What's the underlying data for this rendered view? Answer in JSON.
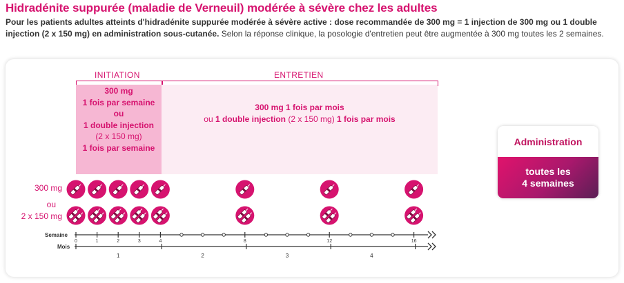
{
  "title": "Hidradénite suppurée (maladie de Verneuil) modérée à sévère chez les adultes",
  "intro": {
    "bold": "Pour les patients adultes atteints d'hidradénite suppurée modérée à sévère active : dose recommandée de 300 mg = 1 injection de 300 mg ou 1 double injection (2 x 150 mg) en administration sous-cutanée.",
    "normal": " Selon la réponse clinique, la posologie d'entretien peut être augmentée à 300 mg toutes les 2 semaines."
  },
  "phases": {
    "initiation_label": "INITIATION",
    "entretien_label": "ENTRETIEN"
  },
  "initiation": {
    "line1": "300 mg",
    "line2": "1 fois par semaine",
    "line3": "ou",
    "line4": "1 double injection",
    "line5": "(2 x 150 mg)",
    "line6": "1 fois par semaine"
  },
  "entretien": {
    "part1": "300 mg 1 fois par mois",
    "part2": "ou",
    "part3": "1 double injection",
    "part4": "(2 x 150 mg)",
    "part5": "1 fois par mois"
  },
  "dose_labels": {
    "single": "300 mg",
    "or": "ou",
    "double": "2 x 150 mg"
  },
  "timeline": {
    "semaine_label": "Semaine",
    "mois_label": "Mois",
    "week_ticks": [
      "0",
      "1",
      "2",
      "3",
      "4",
      "8",
      "12",
      "16"
    ],
    "month_labels": [
      "1",
      "2",
      "3",
      "4"
    ],
    "injection_weeks": [
      0,
      1,
      2,
      3,
      4,
      8,
      12,
      16
    ]
  },
  "administration": {
    "heading": "Administration",
    "line1": "toutes les",
    "line2": "4 semaines"
  },
  "colors": {
    "brand": "#d6136f",
    "initiation_bg": "#f6b7d3",
    "entretien_bg": "#fcecf3"
  },
  "icons": {
    "single": "pen-injector-icon",
    "double": "double-syringe-icon"
  }
}
